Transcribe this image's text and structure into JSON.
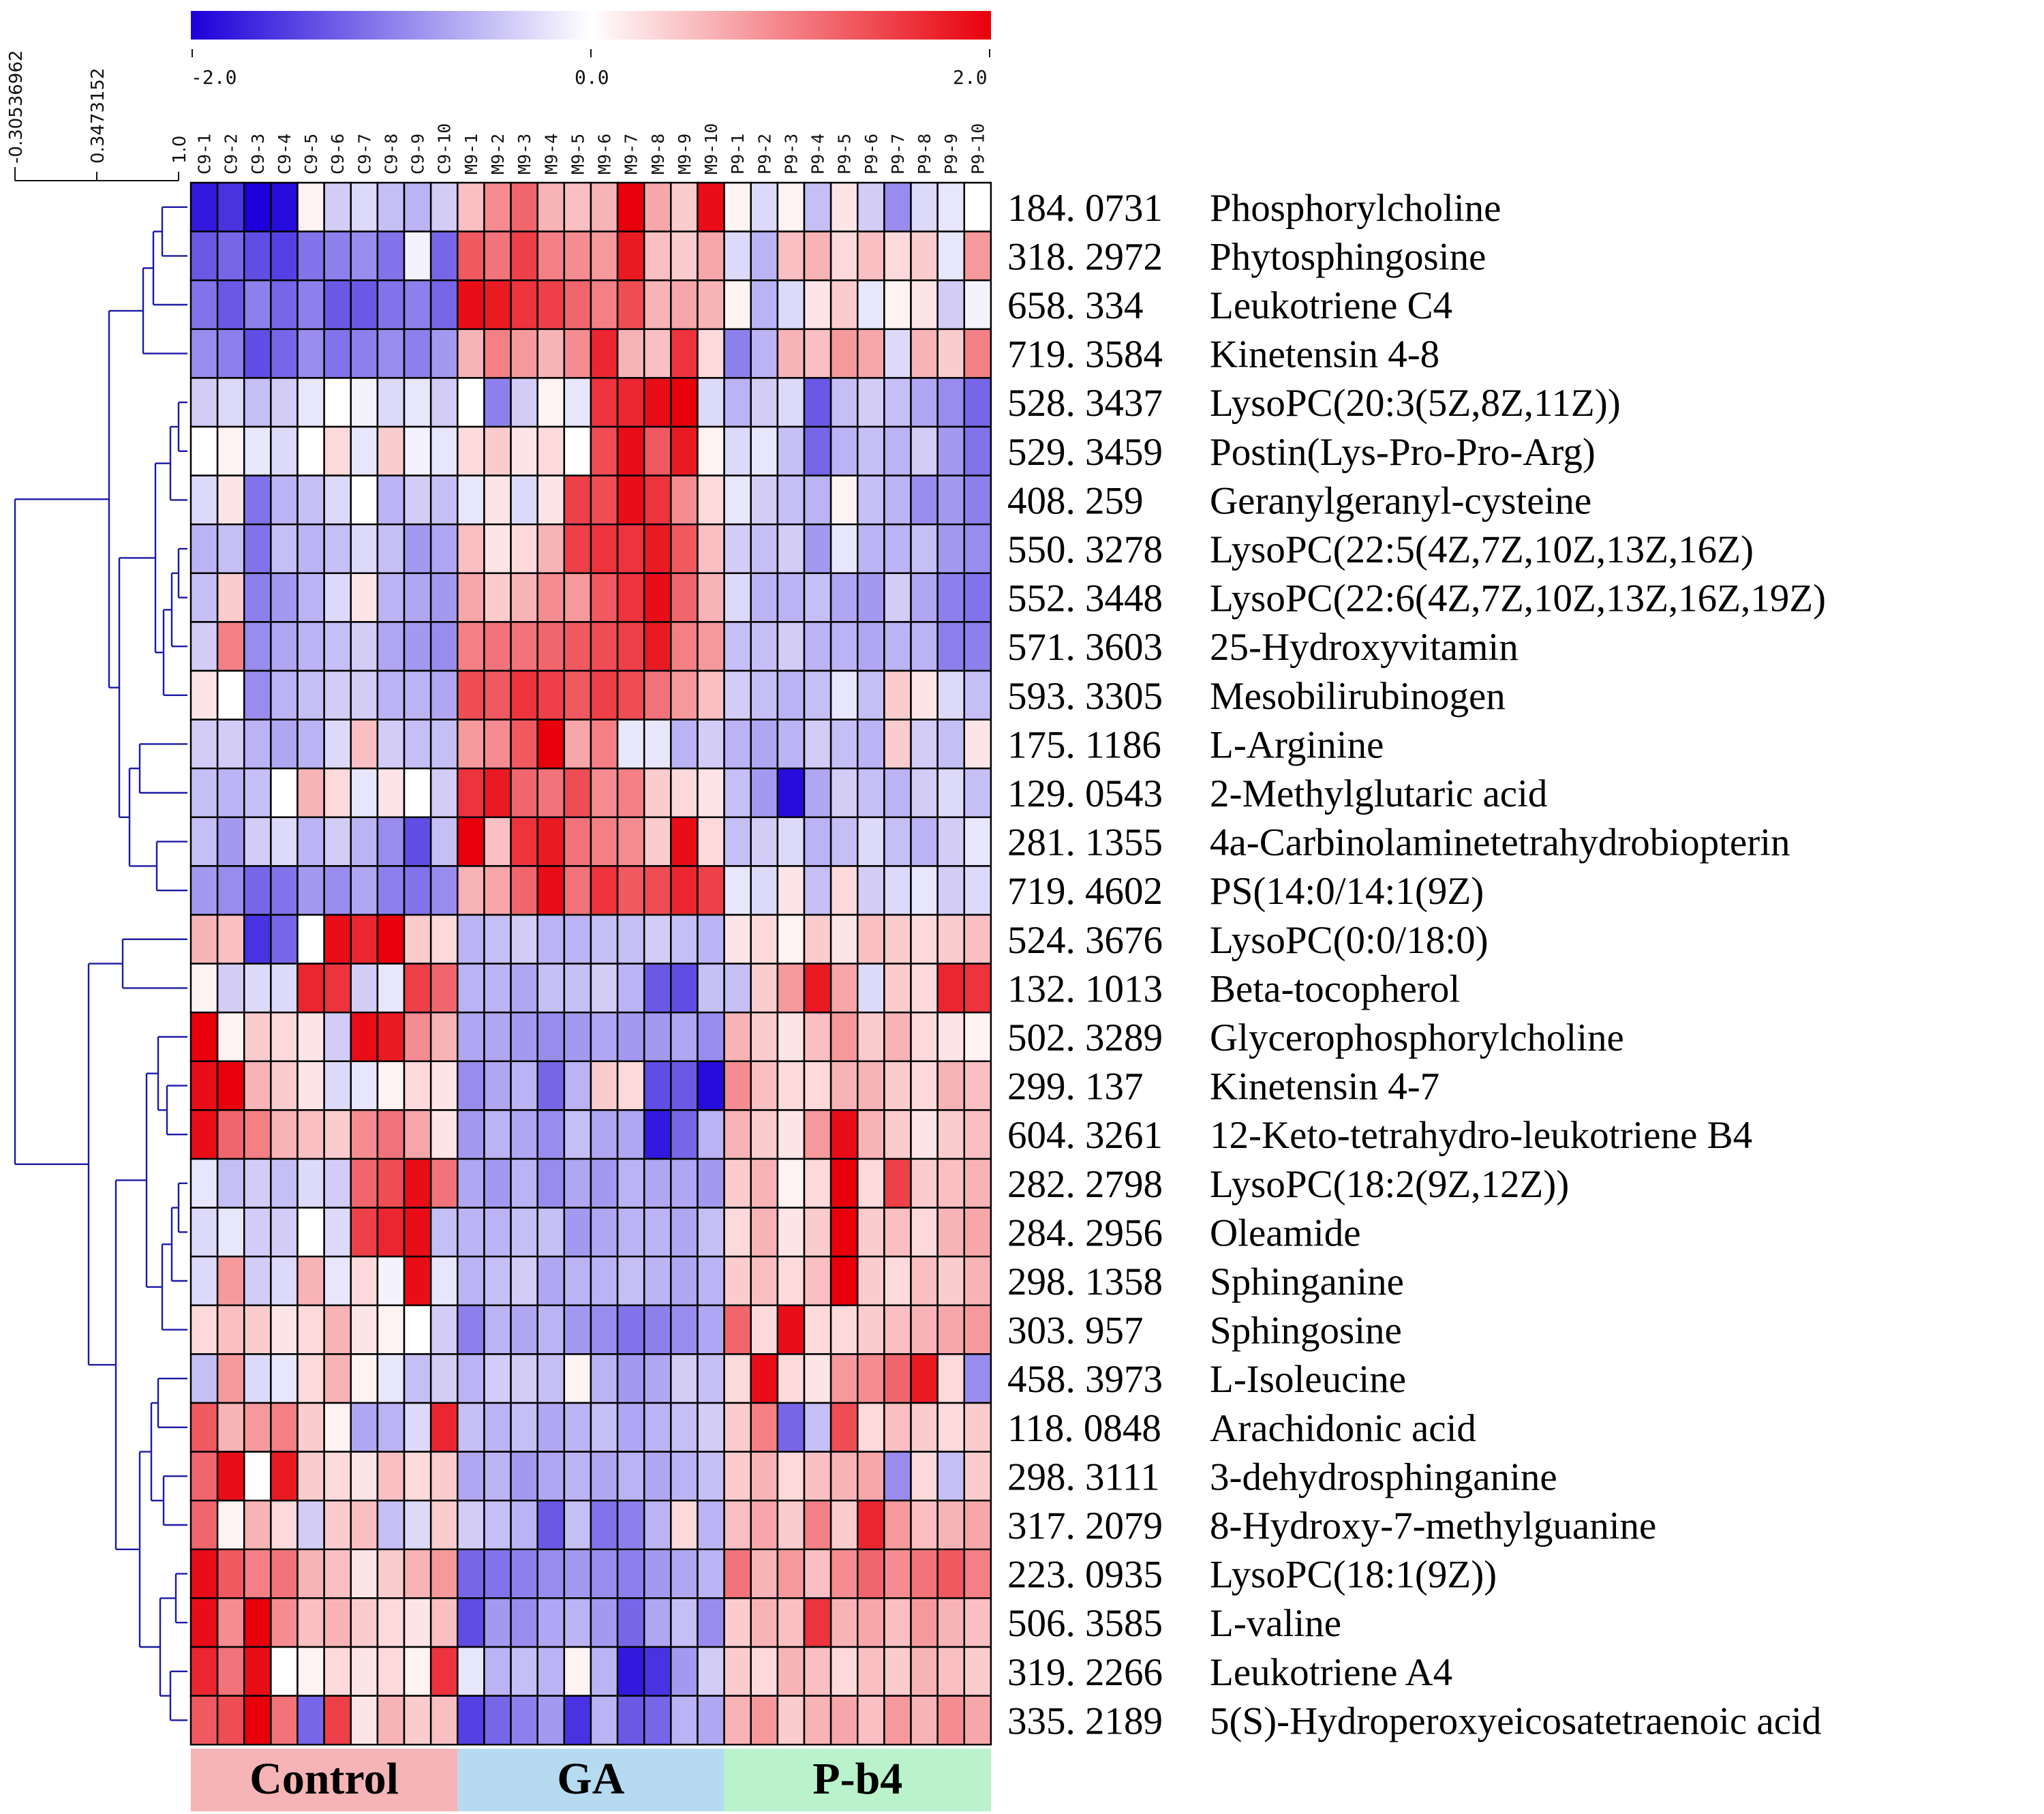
{
  "chart_data": {
    "type": "heatmap",
    "title": "",
    "colorbar": {
      "min": -2.0,
      "mid": 0.0,
      "max": 2.0,
      "min_label": "-2.0",
      "mid_label": "0.0",
      "max_label": "2.0",
      "low_color": "#1c00d9",
      "mid_color": "#ffffff",
      "high_color": "#e8000b"
    },
    "dendrogram_scale": {
      "labels": [
        "-0.30536962",
        "0.3473152",
        "1.0"
      ]
    },
    "columns": [
      "C9-1",
      "C9-2",
      "C9-3",
      "C9-4",
      "C9-5",
      "C9-6",
      "C9-7",
      "C9-8",
      "C9-9",
      "C9-10",
      "M9-1",
      "M9-2",
      "M9-3",
      "M9-4",
      "M9-5",
      "M9-6",
      "M9-7",
      "M9-8",
      "M9-9",
      "M9-10",
      "P9-1",
      "P9-2",
      "P9-3",
      "P9-4",
      "P9-5",
      "P9-6",
      "P9-7",
      "P9-8",
      "P9-9",
      "P9-10"
    ],
    "groups": [
      {
        "name": "Control",
        "start": 0,
        "count": 10,
        "color": "#f6b4b6"
      },
      {
        "name": "GA",
        "start": 10,
        "count": 10,
        "color": "#b6daf0"
      },
      {
        "name": "P-b4",
        "start": 20,
        "count": 10,
        "color": "#b9f2cb"
      }
    ],
    "rows": [
      {
        "mz": "184.0731",
        "name": "Phosphorylcholine"
      },
      {
        "mz": "318.2972",
        "name": "Phytosphingosine"
      },
      {
        "mz": "658.334",
        "name": "Leukotriene C4"
      },
      {
        "mz": "719.3584",
        "name": "Kinetensin 4-8"
      },
      {
        "mz": "528.3437",
        "name": "LysoPC(20:3(5Z,8Z,11Z))"
      },
      {
        "mz": "529.3459",
        "name": "Postin(Lys-Pro-Pro-Arg)"
      },
      {
        "mz": "408.259",
        "name": "Geranylgeranyl-cysteine"
      },
      {
        "mz": "550.3278",
        "name": "LysoPC(22:5(4Z,7Z,10Z,13Z,16Z)"
      },
      {
        "mz": "552.3448",
        "name": "LysoPC(22:6(4Z,7Z,10Z,13Z,16Z,19Z)"
      },
      {
        "mz": "571.3603",
        "name": "25-Hydroxyvitamin"
      },
      {
        "mz": "593.3305",
        "name": "Mesobilirubinogen"
      },
      {
        "mz": "175.1186",
        "name": "L-Arginine"
      },
      {
        "mz": "129.0543",
        "name": "2-Methylglutaric acid"
      },
      {
        "mz": "281.1355",
        "name": "4a-Carbinolaminetetrahydrobiopterin"
      },
      {
        "mz": "719.4602",
        "name": "PS(14:0/14:1(9Z)"
      },
      {
        "mz": "524.3676",
        "name": "LysoPC(0:0/18:0)"
      },
      {
        "mz": "132.1013",
        "name": "Beta-tocopherol"
      },
      {
        "mz": "502.3289",
        "name": "Glycerophosphorylcholine"
      },
      {
        "mz": "299.137",
        "name": "Kinetensin 4-7"
      },
      {
        "mz": "604.3261",
        "name": "12-Keto-tetrahydro-leukotriene B4"
      },
      {
        "mz": "282.2798",
        "name": "LysoPC(18:2(9Z,12Z))"
      },
      {
        "mz": "284.2956",
        "name": "Oleamide"
      },
      {
        "mz": "298.1358",
        "name": "Sphinganine"
      },
      {
        "mz": "303.957",
        "name": "Sphingosine"
      },
      {
        "mz": "458.3973",
        "name": "L-Isoleucine"
      },
      {
        "mz": "118.0848",
        "name": "Arachidonic acid"
      },
      {
        "mz": "298.3111",
        "name": "3-dehydrosphinganine"
      },
      {
        "mz": "317.2079",
        "name": "8-Hydroxy-7-methylguanine"
      },
      {
        "mz": "223.0935",
        "name": "LysoPC(18:1(9Z))"
      },
      {
        "mz": "506.3585",
        "name": "L-valine"
      },
      {
        "mz": "319.2266",
        "name": "Leukotriene A4"
      },
      {
        "mz": "335.2189",
        "name": "5(S)-Hydroperoxyeicosatetraenoic acid"
      }
    ],
    "values": [
      [
        -1.8,
        -1.6,
        -2.0,
        -1.9,
        0.1,
        -0.4,
        -0.3,
        -0.5,
        -0.6,
        -0.4,
        0.5,
        0.9,
        1.2,
        0.6,
        0.5,
        0.6,
        2.0,
        0.7,
        0.4,
        1.9,
        0.1,
        -0.3,
        0.1,
        -0.5,
        0.2,
        -0.4,
        -0.9,
        -0.3,
        -0.2,
        0.0
      ],
      [
        -1.3,
        -1.2,
        -1.4,
        -1.5,
        -1.1,
        -1.0,
        -0.9,
        -1.1,
        -0.1,
        -1.2,
        1.3,
        1.1,
        1.5,
        1.0,
        0.9,
        0.8,
        1.8,
        0.5,
        0.4,
        0.7,
        -0.3,
        -0.6,
        0.5,
        0.6,
        0.3,
        0.5,
        0.3,
        0.4,
        -0.2,
        0.8
      ],
      [
        -1.1,
        -1.3,
        -1.0,
        -1.2,
        -1.0,
        -1.3,
        -1.3,
        -1.1,
        -1.0,
        -1.2,
        1.9,
        1.8,
        1.6,
        1.5,
        1.2,
        1.0,
        1.4,
        0.6,
        0.7,
        0.6,
        0.1,
        -0.6,
        -0.3,
        0.2,
        0.4,
        -0.2,
        0.1,
        0.2,
        -0.4,
        -0.1
      ],
      [
        -0.9,
        -1.0,
        -1.4,
        -1.2,
        -0.9,
        -1.1,
        -1.0,
        -0.9,
        -1.0,
        -0.8,
        0.6,
        1.0,
        0.8,
        0.6,
        0.9,
        1.7,
        0.6,
        0.5,
        1.6,
        0.3,
        -1.0,
        -0.6,
        0.6,
        0.5,
        0.8,
        0.7,
        -0.3,
        0.6,
        0.4,
        1.0
      ],
      [
        -0.4,
        -0.3,
        -0.5,
        -0.4,
        -0.2,
        0.0,
        -0.1,
        -0.3,
        -0.2,
        -0.4,
        0.0,
        -1.0,
        -0.4,
        0.1,
        -0.2,
        1.6,
        1.7,
        1.9,
        2.0,
        -0.3,
        -0.6,
        -0.4,
        -0.3,
        -1.3,
        -0.5,
        -0.4,
        -0.5,
        -0.7,
        -0.9,
        -1.2
      ],
      [
        0.0,
        0.1,
        -0.2,
        -0.3,
        0.0,
        0.3,
        -0.2,
        0.4,
        -0.1,
        -0.2,
        0.3,
        0.4,
        0.2,
        0.3,
        0.0,
        1.4,
        1.9,
        1.3,
        1.8,
        0.1,
        -0.3,
        -0.2,
        -0.5,
        -1.2,
        -0.6,
        -0.5,
        -0.6,
        -0.4,
        -0.8,
        -1.1
      ],
      [
        -0.3,
        0.2,
        -1.1,
        -0.6,
        -0.5,
        -0.3,
        0.0,
        -0.6,
        -0.4,
        -0.5,
        -0.2,
        0.2,
        -0.3,
        0.2,
        1.5,
        1.4,
        1.9,
        1.6,
        0.9,
        0.3,
        -0.2,
        -0.4,
        -0.5,
        -0.6,
        0.1,
        -0.5,
        -0.6,
        -0.9,
        -0.8,
        -1.0
      ],
      [
        -0.6,
        -0.5,
        -1.1,
        -0.5,
        -0.6,
        -0.5,
        -0.3,
        -0.5,
        -0.8,
        -0.7,
        0.5,
        0.2,
        0.3,
        0.6,
        1.5,
        1.6,
        1.6,
        1.8,
        1.3,
        0.5,
        -0.4,
        -0.5,
        -0.4,
        -0.8,
        -0.2,
        -0.6,
        -0.6,
        -0.5,
        -0.8,
        -0.9
      ],
      [
        -0.5,
        0.4,
        -1.0,
        -0.8,
        -0.6,
        -0.3,
        0.2,
        -0.6,
        -0.7,
        -0.8,
        0.7,
        0.4,
        0.6,
        0.9,
        0.8,
        1.3,
        1.6,
        1.9,
        1.2,
        0.6,
        -0.3,
        -0.6,
        -0.6,
        -0.5,
        -0.7,
        -0.8,
        -0.4,
        -0.7,
        -1.0,
        -1.1
      ],
      [
        -0.4,
        1.0,
        -0.9,
        -0.7,
        -0.6,
        -0.5,
        -0.4,
        -0.7,
        -0.8,
        -0.9,
        1.0,
        1.1,
        1.1,
        1.2,
        1.3,
        1.4,
        1.5,
        1.8,
        1.0,
        0.8,
        -0.5,
        -0.5,
        -0.4,
        -0.6,
        -0.6,
        -0.7,
        -0.6,
        -0.6,
        -1.0,
        -1.0
      ],
      [
        0.2,
        0.0,
        -0.9,
        -0.6,
        -0.5,
        -0.4,
        -0.4,
        -0.6,
        -0.6,
        -0.7,
        1.4,
        1.3,
        1.6,
        1.5,
        1.3,
        1.5,
        1.4,
        1.1,
        0.8,
        0.5,
        -0.4,
        -0.5,
        -0.6,
        -0.5,
        -0.2,
        -0.5,
        0.4,
        0.2,
        -0.3,
        -0.5
      ],
      [
        -0.4,
        -0.4,
        -0.6,
        -0.7,
        -0.6,
        -0.3,
        0.5,
        -0.4,
        -0.5,
        -0.5,
        0.8,
        0.9,
        1.3,
        2.0,
        0.7,
        1.0,
        -0.2,
        -0.2,
        -0.6,
        -0.4,
        -0.6,
        -0.7,
        -0.6,
        -0.4,
        -0.5,
        -0.6,
        0.4,
        -0.4,
        -0.5,
        0.2
      ],
      [
        -0.5,
        -0.6,
        -0.5,
        0.0,
        0.6,
        0.3,
        -0.2,
        0.2,
        0.0,
        -0.4,
        1.6,
        1.8,
        1.2,
        1.1,
        1.4,
        0.9,
        1.0,
        0.4,
        0.3,
        0.2,
        -0.5,
        -0.8,
        -1.9,
        -0.7,
        -0.4,
        -0.5,
        -0.6,
        -0.4,
        -0.3,
        -0.5
      ],
      [
        -0.5,
        -0.8,
        -0.4,
        -0.3,
        -0.6,
        -0.4,
        -0.6,
        -0.9,
        -1.4,
        -0.5,
        2.0,
        0.5,
        1.6,
        1.8,
        1.1,
        1.0,
        0.9,
        0.4,
        1.9,
        0.3,
        -0.5,
        -0.4,
        -0.3,
        -0.6,
        -0.5,
        -0.3,
        -0.5,
        -0.6,
        -0.4,
        -0.2
      ],
      [
        -0.8,
        -0.9,
        -1.2,
        -1.1,
        -0.8,
        -0.9,
        -0.7,
        -1.0,
        -1.1,
        -0.9,
        0.6,
        0.7,
        1.2,
        1.9,
        1.1,
        1.6,
        1.3,
        1.4,
        1.7,
        1.5,
        -0.2,
        -0.3,
        0.2,
        -0.5,
        0.3,
        -0.4,
        -0.3,
        -0.2,
        -0.4,
        -0.3
      ],
      [
        0.6,
        0.5,
        -1.6,
        -1.2,
        0.0,
        1.9,
        1.7,
        2.0,
        0.4,
        0.3,
        -0.6,
        -0.5,
        -0.4,
        -0.6,
        -0.6,
        -0.5,
        -0.5,
        -0.4,
        -0.5,
        -0.6,
        0.2,
        0.3,
        0.1,
        0.4,
        0.2,
        0.5,
        0.4,
        0.3,
        0.4,
        0.5
      ],
      [
        0.1,
        -0.4,
        -0.3,
        -0.3,
        1.7,
        1.6,
        -0.4,
        -0.2,
        1.5,
        1.2,
        -0.6,
        -0.6,
        -0.7,
        -0.5,
        -0.5,
        -0.4,
        -0.6,
        -1.3,
        -1.4,
        -0.5,
        -0.5,
        0.4,
        0.8,
        1.8,
        0.7,
        -0.3,
        0.4,
        0.3,
        1.7,
        1.6
      ],
      [
        2.0,
        0.1,
        0.4,
        0.3,
        0.2,
        -0.4,
        1.9,
        1.8,
        0.9,
        0.6,
        -0.7,
        -0.7,
        -0.8,
        -0.9,
        -0.8,
        -0.7,
        -0.8,
        -0.8,
        -0.7,
        -0.9,
        0.6,
        0.4,
        0.2,
        0.5,
        0.8,
        0.4,
        0.6,
        0.3,
        0.2,
        0.1
      ],
      [
        1.9,
        2.0,
        0.6,
        0.4,
        0.2,
        -0.3,
        -0.2,
        0.1,
        0.3,
        0.2,
        -0.9,
        -0.7,
        -0.6,
        -1.2,
        -0.6,
        0.4,
        0.3,
        -1.4,
        -1.3,
        -1.9,
        0.9,
        0.5,
        0.3,
        0.3,
        0.6,
        0.6,
        0.4,
        0.3,
        0.6,
        0.5
      ],
      [
        1.9,
        1.2,
        1.0,
        0.6,
        0.5,
        0.4,
        0.9,
        1.1,
        0.7,
        0.2,
        -0.8,
        -0.6,
        -0.7,
        -0.9,
        -0.5,
        -0.7,
        -0.7,
        -1.8,
        -1.2,
        -0.6,
        0.6,
        0.4,
        0.2,
        0.8,
        1.9,
        0.6,
        0.4,
        0.2,
        0.4,
        0.5
      ],
      [
        -0.2,
        -0.5,
        -0.4,
        -0.5,
        -0.3,
        -0.4,
        1.2,
        1.4,
        1.9,
        1.1,
        -0.7,
        -0.8,
        -0.6,
        -0.9,
        -0.7,
        -0.8,
        -0.6,
        -0.7,
        -0.7,
        -0.8,
        0.4,
        0.6,
        0.1,
        0.3,
        2.0,
        0.3,
        1.5,
        0.4,
        0.5,
        0.6
      ],
      [
        -0.3,
        -0.2,
        -0.4,
        -0.4,
        0.0,
        -0.3,
        1.5,
        1.7,
        1.9,
        -0.5,
        -0.6,
        -0.6,
        -0.5,
        -0.5,
        -0.8,
        -0.7,
        -0.6,
        -0.6,
        -0.7,
        -0.5,
        0.3,
        0.6,
        0.2,
        0.4,
        2.0,
        0.4,
        0.5,
        0.3,
        0.6,
        0.7
      ],
      [
        -0.3,
        0.8,
        -0.4,
        -0.3,
        0.6,
        -0.2,
        0.3,
        -0.1,
        1.9,
        -0.2,
        -0.6,
        -0.5,
        -0.4,
        -0.7,
        -0.6,
        -0.6,
        -0.5,
        -0.6,
        -0.7,
        -0.6,
        0.4,
        0.5,
        0.3,
        0.5,
        2.0,
        0.4,
        0.3,
        0.5,
        0.4,
        0.6
      ],
      [
        0.3,
        0.5,
        0.4,
        0.2,
        0.3,
        0.6,
        0.2,
        0.1,
        0.0,
        -0.4,
        -1.0,
        -0.6,
        -0.7,
        -0.6,
        -0.8,
        -0.9,
        -1.1,
        -1.0,
        -0.9,
        -0.7,
        1.2,
        0.3,
        1.9,
        0.3,
        0.3,
        0.4,
        0.5,
        0.6,
        0.7,
        0.8
      ],
      [
        -0.5,
        0.8,
        -0.3,
        -0.2,
        0.3,
        0.6,
        0.1,
        -0.2,
        -0.5,
        -0.4,
        -0.6,
        -0.4,
        -0.4,
        -0.5,
        0.1,
        -0.6,
        -0.8,
        -0.7,
        -0.4,
        -0.5,
        0.3,
        1.9,
        0.3,
        0.2,
        0.8,
        0.9,
        1.2,
        1.8,
        0.3,
        -0.9
      ],
      [
        1.3,
        0.6,
        0.8,
        1.0,
        0.4,
        0.1,
        -0.7,
        -0.6,
        -0.3,
        1.7,
        -0.5,
        -0.6,
        -0.5,
        -0.7,
        -0.6,
        -0.5,
        -0.7,
        -0.6,
        -0.5,
        -0.4,
        0.4,
        1.0,
        -1.2,
        -0.5,
        1.4,
        0.3,
        0.5,
        0.4,
        0.3,
        0.4
      ],
      [
        1.2,
        1.9,
        0.0,
        1.8,
        0.4,
        0.3,
        0.2,
        0.5,
        0.3,
        0.4,
        -0.7,
        -0.6,
        -0.8,
        -0.7,
        -0.6,
        -0.7,
        -0.6,
        -0.7,
        -0.6,
        -0.5,
        0.4,
        0.6,
        0.3,
        0.5,
        0.6,
        0.7,
        -0.9,
        0.3,
        -0.5,
        0.4
      ],
      [
        1.2,
        0.1,
        0.6,
        0.3,
        -0.4,
        0.4,
        0.5,
        -0.5,
        -0.3,
        0.4,
        -0.4,
        -0.5,
        -0.6,
        -1.3,
        -0.5,
        -1.1,
        -1.0,
        -0.6,
        0.3,
        -0.6,
        0.5,
        0.7,
        0.4,
        1.0,
        0.4,
        1.7,
        0.8,
        0.5,
        0.6,
        0.7
      ],
      [
        1.9,
        1.3,
        1.0,
        1.1,
        0.6,
        0.5,
        0.2,
        0.4,
        0.6,
        0.8,
        -1.2,
        -1.1,
        -1.0,
        -0.9,
        -0.8,
        -0.9,
        -1.0,
        -0.8,
        -0.7,
        -0.6,
        1.1,
        0.6,
        0.8,
        0.5,
        0.9,
        1.2,
        0.9,
        1.1,
        1.3,
        1.0
      ],
      [
        1.9,
        0.9,
        2.0,
        0.9,
        0.5,
        0.6,
        0.4,
        0.3,
        0.2,
        0.5,
        -1.4,
        -0.8,
        -0.9,
        -0.7,
        -0.6,
        -0.8,
        -1.2,
        -0.7,
        -0.5,
        -0.9,
        0.4,
        0.6,
        0.5,
        1.6,
        0.6,
        0.7,
        0.5,
        0.8,
        0.6,
        0.5
      ],
      [
        1.7,
        1.1,
        1.9,
        0.0,
        0.1,
        0.3,
        0.2,
        0.3,
        0.1,
        1.6,
        -0.2,
        -0.6,
        -0.5,
        -0.6,
        0.1,
        -0.6,
        -1.8,
        -1.6,
        -0.8,
        -0.4,
        0.4,
        0.3,
        0.6,
        0.5,
        0.3,
        0.5,
        0.4,
        0.6,
        0.5,
        0.4
      ],
      [
        1.3,
        1.4,
        2.0,
        1.1,
        -1.2,
        1.5,
        0.2,
        0.6,
        0.4,
        0.5,
        -1.5,
        -1.2,
        -1.0,
        -0.8,
        -1.6,
        -0.6,
        -1.3,
        -1.2,
        -0.6,
        -0.7,
        0.6,
        0.8,
        0.4,
        0.6,
        0.7,
        0.5,
        0.8,
        0.6,
        0.9,
        0.7
      ]
    ]
  }
}
